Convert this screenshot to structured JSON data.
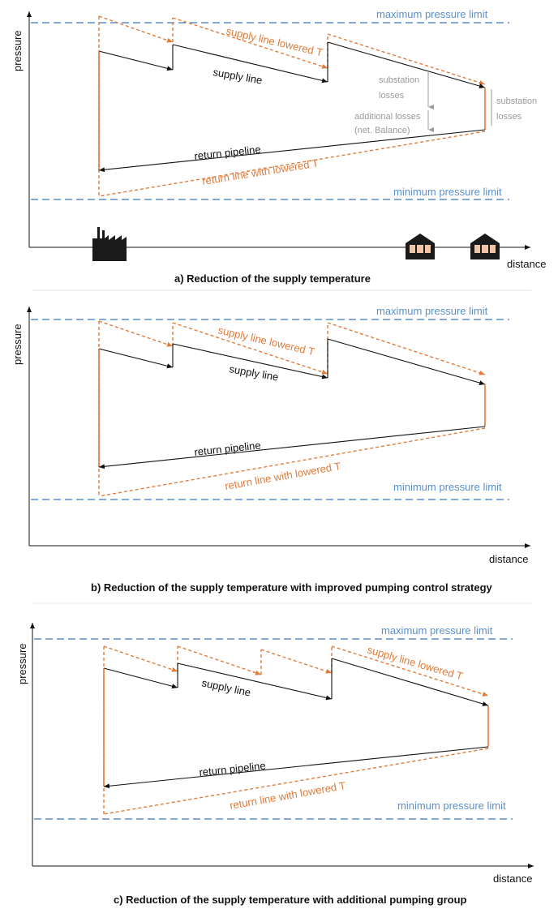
{
  "colors": {
    "limit": "#5b8fc7",
    "lowered": "#e07b39",
    "base": "#111111",
    "annotation": "#9a9a9a"
  },
  "panel_a": {
    "y_axis": "pressure",
    "x_axis": "distance",
    "max_limit": "maximum pressure limit",
    "min_limit": "minimum pressure limit",
    "supply_line": "supply line",
    "supply_lowered": "supply line lowered T",
    "return_line": "return pipeline",
    "return_lowered": "return line with lowered T",
    "substation_losses_1a": "substation",
    "substation_losses_1b": "losses",
    "additional_losses_a": "additional losses",
    "additional_losses_b": "(net. Balance)",
    "substation_losses_2a": "substation",
    "substation_losses_2b": "losses",
    "caption": "a) Reduction of the supply temperature"
  },
  "panel_b": {
    "y_axis": "pressure",
    "x_axis": "distance",
    "max_limit": "maximum pressure limit",
    "min_limit": "minimum pressure limit",
    "supply_line": "supply line",
    "supply_lowered": "supply line lowered T",
    "return_line": "return pipeline",
    "return_lowered": "return line with lowered T",
    "caption": "b) Reduction of the supply temperature with improved pumping control strategy"
  },
  "panel_c": {
    "y_axis": "pressure",
    "x_axis": "distance",
    "max_limit": "maximum pressure limit",
    "min_limit": "minimum pressure limit",
    "supply_line": "supply line",
    "supply_lowered": "supply line lowered T",
    "return_line": "return pipeline",
    "return_lowered": "return line with lowered T",
    "caption": "c) Reduction of the supply temperature with additional pumping group"
  },
  "icons": [
    "factory-icon",
    "substation-building-icon",
    "substation-building-icon"
  ]
}
